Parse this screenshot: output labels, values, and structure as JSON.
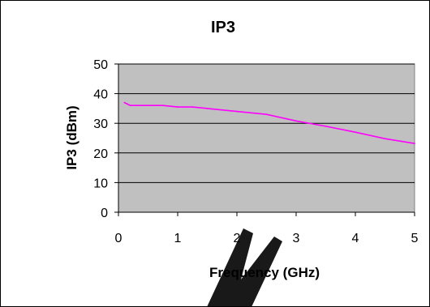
{
  "chart_data": {
    "type": "line",
    "title": "IP3",
    "xlabel": "Frequency (GHz)",
    "ylabel": "IP3 (dBm)",
    "xlim": [
      0,
      5
    ],
    "ylim": [
      0,
      50
    ],
    "x_ticks": [
      "0",
      "1",
      "2",
      "3",
      "4",
      "5"
    ],
    "y_ticks": [
      "0",
      "10",
      "20",
      "30",
      "40",
      "50"
    ],
    "grid": true,
    "plot_background": "#c0c0c0",
    "series": [
      {
        "color": "#ff00ff",
        "x": [
          0.1,
          0.2,
          0.5,
          0.75,
          1.0,
          1.25,
          1.5,
          2.0,
          2.5,
          3.0,
          3.5,
          4.0,
          4.5,
          5.0
        ],
        "y": [
          37.0,
          36.0,
          36.0,
          36.0,
          35.5,
          35.5,
          35.0,
          34.0,
          33.0,
          30.8,
          29.0,
          27.0,
          24.8,
          23.2
        ]
      }
    ]
  }
}
